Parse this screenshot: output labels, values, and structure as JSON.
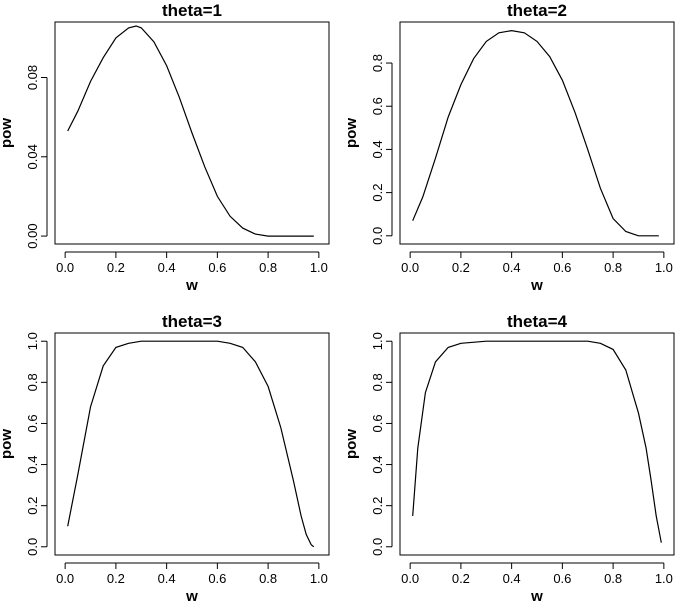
{
  "chart_data": [
    {
      "type": "line",
      "title": "theta=1",
      "xlabel": "w",
      "ylabel": "pow",
      "xlim": [
        -0.04,
        1.04
      ],
      "ylim": [
        -0.004,
        0.108
      ],
      "xticks": [
        0.0,
        0.2,
        0.4,
        0.6,
        0.8,
        1.0
      ],
      "xtick_labels": [
        "0.0",
        "0.2",
        "0.4",
        "0.6",
        "0.8",
        "1.0"
      ],
      "yticks": [
        0.0,
        0.04,
        0.08
      ],
      "ytick_labels": [
        "0.00",
        "0.04",
        "0.08"
      ],
      "grid": false,
      "series": [
        {
          "x": [
            0.01,
            0.05,
            0.1,
            0.15,
            0.2,
            0.25,
            0.28,
            0.3,
            0.35,
            0.4,
            0.45,
            0.5,
            0.55,
            0.6,
            0.65,
            0.7,
            0.75,
            0.8,
            0.85,
            0.9,
            0.95,
            0.98
          ],
          "y": [
            0.053,
            0.063,
            0.078,
            0.09,
            0.1,
            0.105,
            0.106,
            0.105,
            0.098,
            0.086,
            0.07,
            0.052,
            0.035,
            0.02,
            0.01,
            0.004,
            0.001,
            0.0,
            0.0,
            0.0,
            0.0,
            0.0
          ]
        }
      ]
    },
    {
      "type": "line",
      "title": "theta=2",
      "xlabel": "w",
      "ylabel": "pow",
      "xlim": [
        -0.04,
        1.04
      ],
      "ylim": [
        -0.038,
        0.99
      ],
      "xticks": [
        0.0,
        0.2,
        0.4,
        0.6,
        0.8,
        1.0
      ],
      "xtick_labels": [
        "0.0",
        "0.2",
        "0.4",
        "0.6",
        "0.8",
        "1.0"
      ],
      "yticks": [
        0.0,
        0.2,
        0.4,
        0.6,
        0.8
      ],
      "ytick_labels": [
        "0.0",
        "0.2",
        "0.4",
        "0.6",
        "0.8"
      ],
      "grid": false,
      "series": [
        {
          "x": [
            0.01,
            0.05,
            0.1,
            0.15,
            0.2,
            0.25,
            0.3,
            0.35,
            0.4,
            0.45,
            0.5,
            0.55,
            0.6,
            0.65,
            0.7,
            0.75,
            0.8,
            0.85,
            0.9,
            0.95,
            0.98
          ],
          "y": [
            0.07,
            0.18,
            0.36,
            0.55,
            0.7,
            0.82,
            0.9,
            0.94,
            0.95,
            0.94,
            0.9,
            0.83,
            0.72,
            0.57,
            0.4,
            0.22,
            0.08,
            0.02,
            0.0,
            0.0,
            0.0
          ]
        }
      ]
    },
    {
      "type": "line",
      "title": "theta=3",
      "xlabel": "w",
      "ylabel": "pow",
      "xlim": [
        -0.04,
        1.04
      ],
      "ylim": [
        -0.04,
        1.04
      ],
      "xticks": [
        0.0,
        0.2,
        0.4,
        0.6,
        0.8,
        1.0
      ],
      "xtick_labels": [
        "0.0",
        "0.2",
        "0.4",
        "0.6",
        "0.8",
        "1.0"
      ],
      "yticks": [
        0.0,
        0.2,
        0.4,
        0.6,
        0.8,
        1.0
      ],
      "ytick_labels": [
        "0.0",
        "0.2",
        "0.4",
        "0.6",
        "0.8",
        "1.0"
      ],
      "grid": false,
      "series": [
        {
          "x": [
            0.01,
            0.05,
            0.1,
            0.15,
            0.2,
            0.25,
            0.3,
            0.4,
            0.5,
            0.6,
            0.65,
            0.7,
            0.75,
            0.8,
            0.85,
            0.9,
            0.93,
            0.95,
            0.97,
            0.98
          ],
          "y": [
            0.1,
            0.35,
            0.68,
            0.88,
            0.97,
            0.99,
            1.0,
            1.0,
            1.0,
            1.0,
            0.99,
            0.97,
            0.9,
            0.78,
            0.58,
            0.32,
            0.15,
            0.06,
            0.01,
            0.0
          ]
        }
      ]
    },
    {
      "type": "line",
      "title": "theta=4",
      "xlabel": "w",
      "ylabel": "pow",
      "xlim": [
        -0.04,
        1.04
      ],
      "ylim": [
        -0.04,
        1.04
      ],
      "xticks": [
        0.0,
        0.2,
        0.4,
        0.6,
        0.8,
        1.0
      ],
      "xtick_labels": [
        "0.0",
        "0.2",
        "0.4",
        "0.6",
        "0.8",
        "1.0"
      ],
      "yticks": [
        0.0,
        0.2,
        0.4,
        0.6,
        0.8,
        1.0
      ],
      "ytick_labels": [
        "0.0",
        "0.2",
        "0.4",
        "0.6",
        "0.8",
        "1.0"
      ],
      "grid": false,
      "series": [
        {
          "x": [
            0.01,
            0.03,
            0.06,
            0.1,
            0.15,
            0.2,
            0.3,
            0.5,
            0.7,
            0.75,
            0.8,
            0.85,
            0.9,
            0.93,
            0.95,
            0.97,
            0.99
          ],
          "y": [
            0.15,
            0.48,
            0.75,
            0.9,
            0.97,
            0.99,
            1.0,
            1.0,
            1.0,
            0.99,
            0.96,
            0.86,
            0.65,
            0.48,
            0.32,
            0.15,
            0.02
          ]
        }
      ]
    }
  ]
}
